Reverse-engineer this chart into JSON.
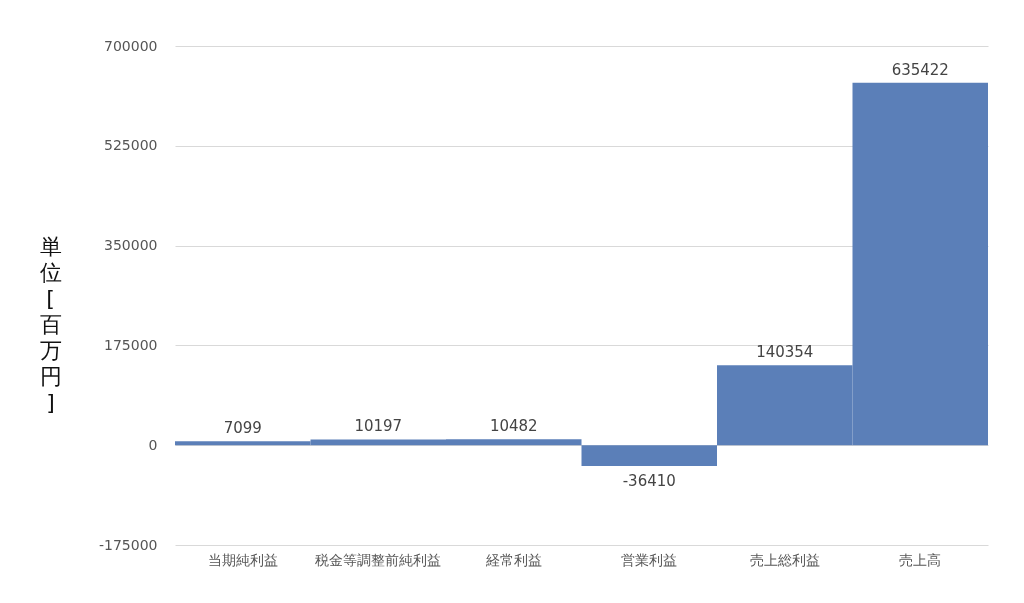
{
  "chart_data": {
    "type": "bar",
    "ylabel": "単位　[百万円]",
    "categories": [
      "当期純利益",
      "税金等調整前純利益",
      "経常利益",
      "営業利益",
      "売上総利益",
      "売上高"
    ],
    "values": [
      7099,
      10197,
      10482,
      -36410,
      140354,
      635422
    ],
    "color": "#5b7fb8",
    "ylim": [
      -175000,
      700000
    ],
    "yticks": [
      -175000,
      0,
      175000,
      350000,
      525000,
      700000
    ],
    "grid": "y",
    "data_labels": true
  }
}
